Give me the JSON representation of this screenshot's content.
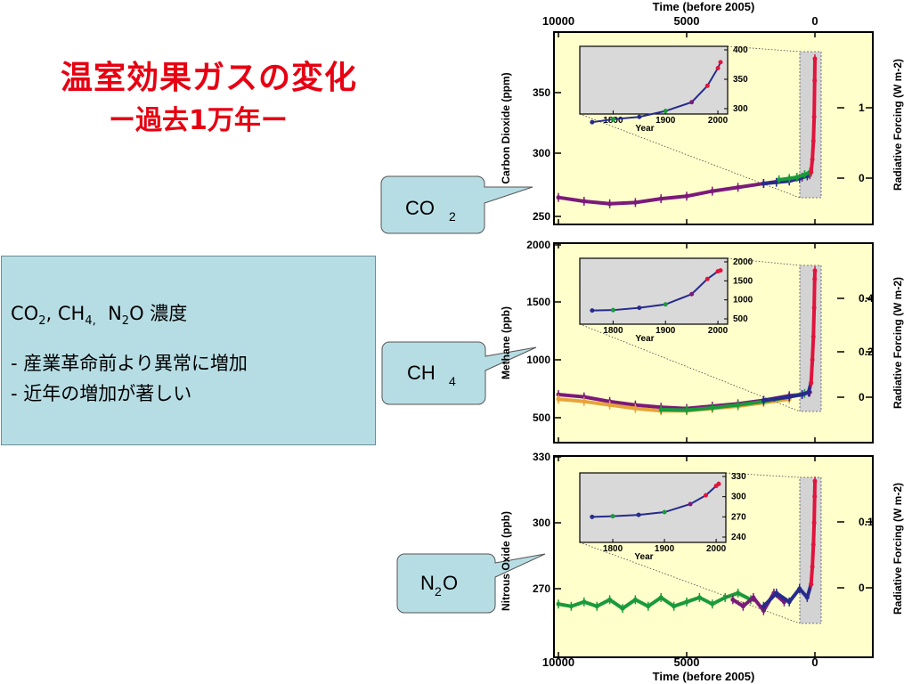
{
  "slide": {
    "title": "温室効果ガスの変化",
    "subtitle": "ー過去1万年ー"
  },
  "infobox": {
    "gases": [
      {
        "base": "CO",
        "sub": "2",
        "sep": ", "
      },
      {
        "base": "CH",
        "sub": "4,",
        "sep": "  "
      },
      {
        "base": "N",
        "sub": "2",
        "sep": "O 濃度"
      }
    ],
    "bullets": [
      "- 産業革命前より異常に増加",
      "- 近年の増加が著しい"
    ]
  },
  "callouts": [
    {
      "id": "co2",
      "base": "CO",
      "sub": "2",
      "tail": ""
    },
    {
      "id": "ch4",
      "base": "CH",
      "sub": "4",
      "tail": ""
    },
    {
      "id": "n2o",
      "base": "N",
      "sub": "2",
      "tail": "O"
    }
  ],
  "figure": {
    "top_axis_title": "Time (before 2005)",
    "bottom_axis_title": "Time (before 2005)",
    "time_ticks": [
      "10000",
      "5000",
      "0"
    ],
    "inset_xlabel": "Year",
    "inset_xticks": [
      "1800",
      "1900",
      "2000"
    ],
    "colors": {
      "panel_bg": "#ffffcc",
      "inset_bg": "#d9d9d9",
      "purple": "#7b1a7a",
      "blue": "#262b8c",
      "green": "#1a9a3a",
      "red": "#e0143c",
      "orange": "#e8a23a"
    }
  },
  "chart_data": [
    {
      "type": "line",
      "ylabel": "Carbon Dioxide (ppm)",
      "y2label": "Radiative Forcing (W m-2)",
      "xlabel": "Time (before 2005)",
      "xlim": [
        10000,
        0
      ],
      "ylim": [
        245,
        400
      ],
      "yticks": [
        "250",
        "300",
        "350"
      ],
      "y2ticks": [
        "0",
        "1"
      ],
      "series": [
        {
          "color": "#7b1a7a",
          "x": [
            10000,
            9000,
            8000,
            7000,
            6000,
            5000,
            4000,
            3000,
            2000,
            1000,
            500,
            200
          ],
          "y": [
            265,
            262,
            260,
            261,
            264,
            266,
            270,
            273,
            276,
            279,
            281,
            283
          ]
        },
        {
          "color": "#262b8c",
          "x": [
            2000,
            1500,
            1000,
            600,
            300,
            150
          ],
          "y": [
            276,
            277,
            278,
            280,
            282,
            285
          ]
        },
        {
          "color": "#1a9a3a",
          "x": [
            1400,
            1000,
            700,
            400,
            200
          ],
          "y": [
            279,
            280,
            281,
            283,
            285
          ]
        },
        {
          "color": "#e0143c",
          "x": [
            150,
            100,
            60,
            30,
            10,
            0
          ],
          "y": [
            285,
            295,
            310,
            330,
            360,
            378
          ]
        }
      ],
      "inset": {
        "xlim": [
          1750,
          2005
        ],
        "yticks": [
          "300",
          "350",
          "400"
        ],
        "xy": [
          [
            1760,
            277
          ],
          [
            1800,
            282
          ],
          [
            1850,
            286
          ],
          [
            1900,
            296
          ],
          [
            1950,
            311
          ],
          [
            1980,
            339
          ],
          [
            2000,
            369
          ],
          [
            2005,
            379
          ]
        ]
      }
    },
    {
      "type": "line",
      "ylabel": "Methane (ppb)",
      "y2label": "Radiative Forcing (W m-2)",
      "xlabel": "Time (before 2005)",
      "xlim": [
        10000,
        0
      ],
      "ylim": [
        400,
        2000
      ],
      "yticks": [
        "500",
        "1000",
        "1500",
        "2000"
      ],
      "y2ticks": [
        "0",
        "0.2",
        "0.4"
      ],
      "series": [
        {
          "color": "#7b1a7a",
          "x": [
            10000,
            9000,
            8000,
            7000,
            6000,
            5000,
            4000,
            3000,
            2000,
            1000,
            500,
            200
          ],
          "y": [
            700,
            680,
            640,
            610,
            590,
            580,
            600,
            620,
            650,
            690,
            700,
            720
          ]
        },
        {
          "color": "#e8a23a",
          "x": [
            10000,
            9000,
            8000,
            7000,
            6000,
            5000,
            4000,
            3000,
            2000,
            1000
          ],
          "y": [
            660,
            640,
            610,
            580,
            560,
            560,
            580,
            600,
            630,
            660
          ]
        },
        {
          "color": "#1a9a3a",
          "x": [
            6000,
            5000,
            4000,
            3000,
            2000,
            1000,
            400
          ],
          "y": [
            570,
            565,
            585,
            610,
            640,
            680,
            710
          ]
        },
        {
          "color": "#262b8c",
          "x": [
            2000,
            1000,
            500,
            250,
            150
          ],
          "y": [
            650,
            680,
            700,
            720,
            800
          ]
        },
        {
          "color": "#e0143c",
          "x": [
            150,
            100,
            60,
            30,
            10,
            0
          ],
          "y": [
            800,
            1000,
            1200,
            1450,
            1700,
            1774
          ]
        }
      ],
      "inset": {
        "xlim": [
          1750,
          2005
        ],
        "yticks": [
          "500",
          "1000",
          "1500",
          "2000"
        ],
        "xy": [
          [
            1760,
            720
          ],
          [
            1800,
            730
          ],
          [
            1850,
            790
          ],
          [
            1900,
            880
          ],
          [
            1950,
            1150
          ],
          [
            1980,
            1550
          ],
          [
            2000,
            1750
          ],
          [
            2005,
            1774
          ]
        ]
      }
    },
    {
      "type": "line",
      "ylabel": "Nitrous Oxide (ppb)",
      "y2label": "Radiative Forcing (W m-2)",
      "xlabel": "Time (before 2005)",
      "xlim": [
        10000,
        0
      ],
      "ylim": [
        245,
        330
      ],
      "yticks": [
        "270",
        "300",
        "330"
      ],
      "y2ticks": [
        "0",
        "0.1"
      ],
      "series": [
        {
          "color": "#1a9a3a",
          "x": [
            10000,
            9500,
            9000,
            8500,
            8000,
            7500,
            7000,
            6500,
            6000,
            5500,
            5000,
            4500,
            4000,
            3500,
            3000,
            2500
          ],
          "y": [
            263,
            262,
            264,
            262,
            265,
            261,
            265,
            262,
            266,
            262,
            264,
            266,
            263,
            266,
            268,
            265
          ]
        },
        {
          "color": "#7b1a7a",
          "x": [
            3200,
            2800,
            2400,
            2000,
            1600,
            1200
          ],
          "y": [
            265,
            262,
            266,
            260,
            268,
            264
          ]
        },
        {
          "color": "#262b8c",
          "x": [
            2000,
            1500,
            1000,
            600,
            300,
            150
          ],
          "y": [
            262,
            268,
            264,
            270,
            266,
            272
          ]
        },
        {
          "color": "#e0143c",
          "x": [
            150,
            100,
            60,
            30,
            10,
            0
          ],
          "y": [
            272,
            280,
            290,
            300,
            312,
            319
          ]
        }
      ],
      "inset": {
        "xlim": [
          1750,
          2005
        ],
        "yticks": [
          "240",
          "270",
          "300",
          "330"
        ],
        "xy": [
          [
            1760,
            270
          ],
          [
            1800,
            271
          ],
          [
            1850,
            273
          ],
          [
            1900,
            277
          ],
          [
            1950,
            289
          ],
          [
            1980,
            302
          ],
          [
            2000,
            316
          ],
          [
            2005,
            319
          ]
        ]
      }
    }
  ]
}
